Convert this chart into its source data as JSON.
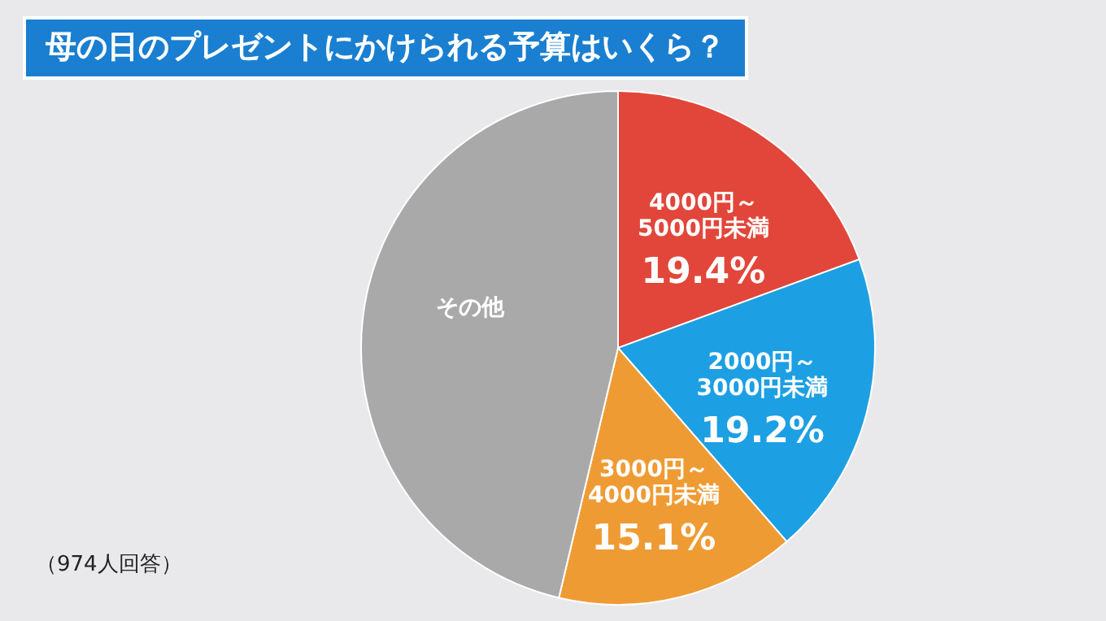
{
  "chart_data": {
    "type": "pie",
    "title": "母の日のプレゼントにかけられる予算はいくら？",
    "categories": [
      "4000円～5000円未満",
      "2000円～3000円未満",
      "3000円～4000円未満",
      "その他"
    ],
    "values": [
      19.4,
      19.2,
      15.1,
      46.3
    ],
    "colors": [
      "#e2463a",
      "#1d9fe3",
      "#ef9b33",
      "#a9a9a9"
    ],
    "value_labels": [
      "19.4%",
      "19.2%",
      "15.1%",
      null
    ],
    "annotations": [
      "（974人回答）"
    ]
  }
}
